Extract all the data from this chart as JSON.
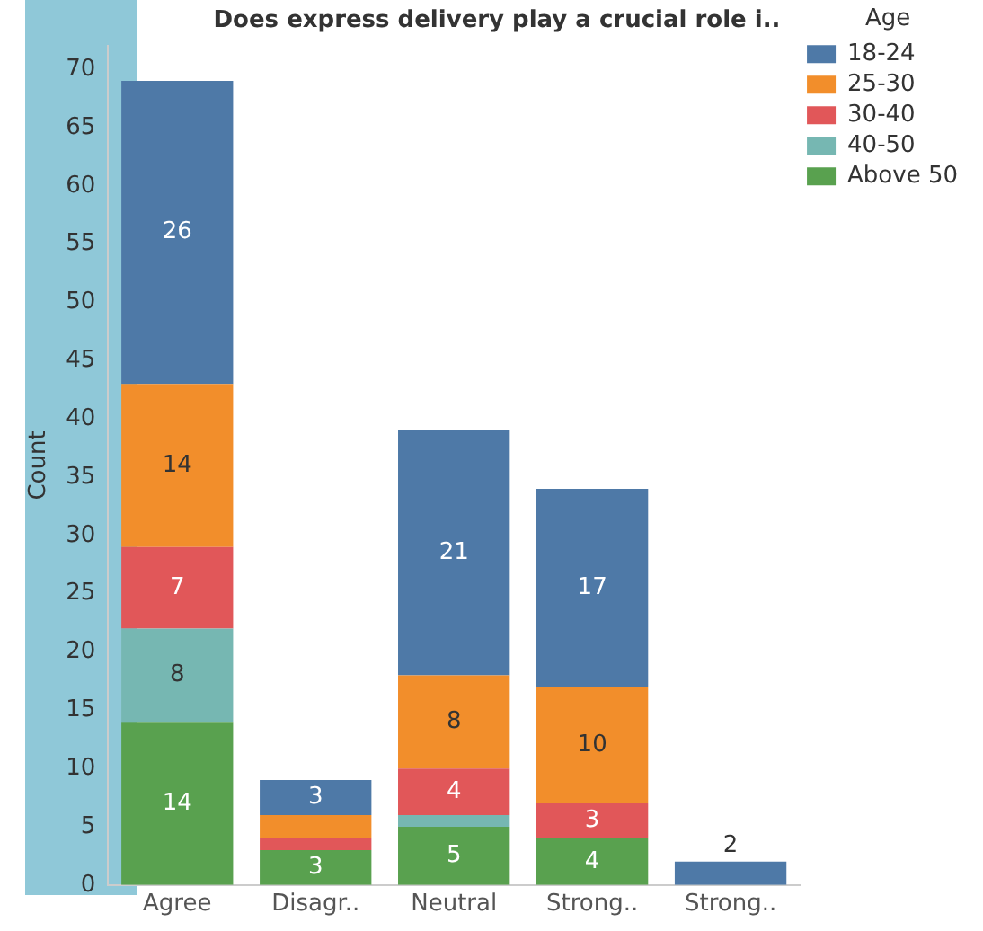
{
  "chart_data": {
    "type": "bar",
    "title": "Does express delivery play a crucial role i..",
    "ylabel": "Count",
    "legend_title": "Age",
    "stacked": true,
    "legend": "top right",
    "grid": false,
    "categories": [
      "Agree",
      "Disagr..",
      "Neutral",
      "Strong..",
      "Strong.."
    ],
    "ylim": [
      0,
      72
    ],
    "yticks": [
      0,
      5,
      10,
      15,
      20,
      25,
      30,
      35,
      40,
      45,
      50,
      55,
      60,
      65,
      70
    ],
    "series": [
      {
        "name": "Above 50",
        "color": "#59a14f",
        "values": [
          14,
          3,
          5,
          4,
          0
        ],
        "value_labels": [
          "14",
          "3",
          "5",
          "4",
          null
        ]
      },
      {
        "name": "40-50",
        "color": "#76b7b2",
        "values": [
          8,
          0,
          1,
          0,
          0
        ],
        "value_labels": [
          "8",
          null,
          null,
          null,
          null
        ]
      },
      {
        "name": "30-40",
        "color": "#e15759",
        "values": [
          7,
          1,
          4,
          3,
          0
        ],
        "value_labels": [
          "7",
          null,
          "4",
          "3",
          null
        ]
      },
      {
        "name": "25-30",
        "color": "#f28e2b",
        "values": [
          14,
          2,
          8,
          10,
          0
        ],
        "value_labels": [
          "14",
          null,
          "8",
          "10",
          null
        ]
      },
      {
        "name": "18-24",
        "color": "#4e79a7",
        "values": [
          26,
          3,
          21,
          17,
          2
        ],
        "value_labels": [
          "26",
          "3",
          "21",
          "17",
          "2"
        ]
      }
    ]
  }
}
